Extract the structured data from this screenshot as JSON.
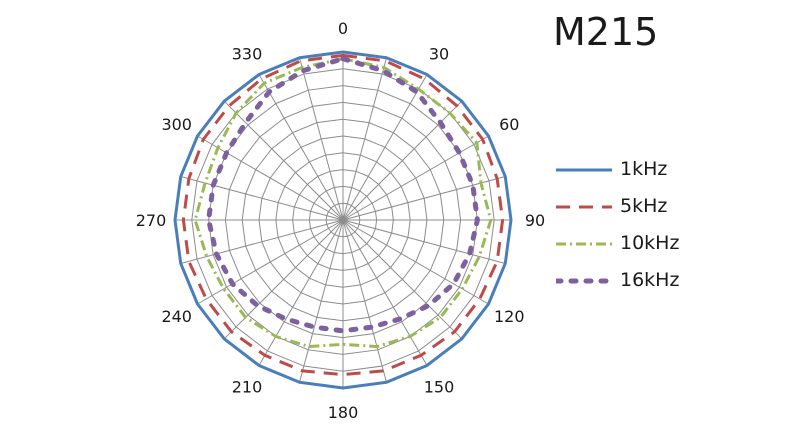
{
  "chart_data": {
    "type": "polar-line",
    "title": "M215",
    "angle_ticks": [
      "0",
      "30",
      "60",
      "90",
      "120",
      "150",
      "180",
      "210",
      "240",
      "270",
      "300",
      "330"
    ],
    "radial_range": [
      0,
      1
    ],
    "grid": true,
    "legend_position": "right",
    "angles": [
      0,
      15,
      30,
      45,
      60,
      75,
      90,
      105,
      120,
      135,
      150,
      165,
      180,
      195,
      210,
      225,
      240,
      255,
      270,
      285,
      300,
      315,
      330,
      345
    ],
    "series": [
      {
        "name": "1kHz",
        "color": "#4a7ebb",
        "style": "solid",
        "values": [
          1.0,
          1.0,
          1.0,
          1.0,
          1.0,
          1.0,
          1.0,
          1.0,
          1.0,
          1.0,
          1.0,
          1.0,
          1.0,
          1.0,
          1.0,
          1.0,
          1.0,
          1.0,
          1.0,
          1.0,
          1.0,
          1.0,
          1.0,
          1.0
        ]
      },
      {
        "name": "5kHz",
        "color": "#be4b48",
        "style": "dash",
        "values": [
          0.98,
          0.98,
          0.97,
          0.96,
          0.96,
          0.95,
          0.95,
          0.95,
          0.94,
          0.94,
          0.93,
          0.93,
          0.92,
          0.93,
          0.93,
          0.94,
          0.94,
          0.95,
          0.95,
          0.95,
          0.96,
          0.96,
          0.97,
          0.98
        ]
      },
      {
        "name": "10kHz",
        "color": "#98b954",
        "style": "dashdot",
        "values": [
          0.96,
          0.94,
          0.9,
          0.9,
          0.92,
          0.85,
          0.88,
          0.84,
          0.82,
          0.82,
          0.8,
          0.78,
          0.74,
          0.78,
          0.8,
          0.82,
          0.82,
          0.84,
          0.88,
          0.85,
          0.86,
          0.9,
          0.94,
          0.94
        ]
      },
      {
        "name": "16kHz",
        "color": "#7d60a0",
        "style": "dot",
        "values": [
          0.96,
          0.92,
          0.88,
          0.82,
          0.8,
          0.8,
          0.8,
          0.78,
          0.76,
          0.72,
          0.68,
          0.66,
          0.66,
          0.66,
          0.68,
          0.72,
          0.76,
          0.78,
          0.8,
          0.8,
          0.8,
          0.82,
          0.88,
          0.92
        ]
      }
    ]
  }
}
